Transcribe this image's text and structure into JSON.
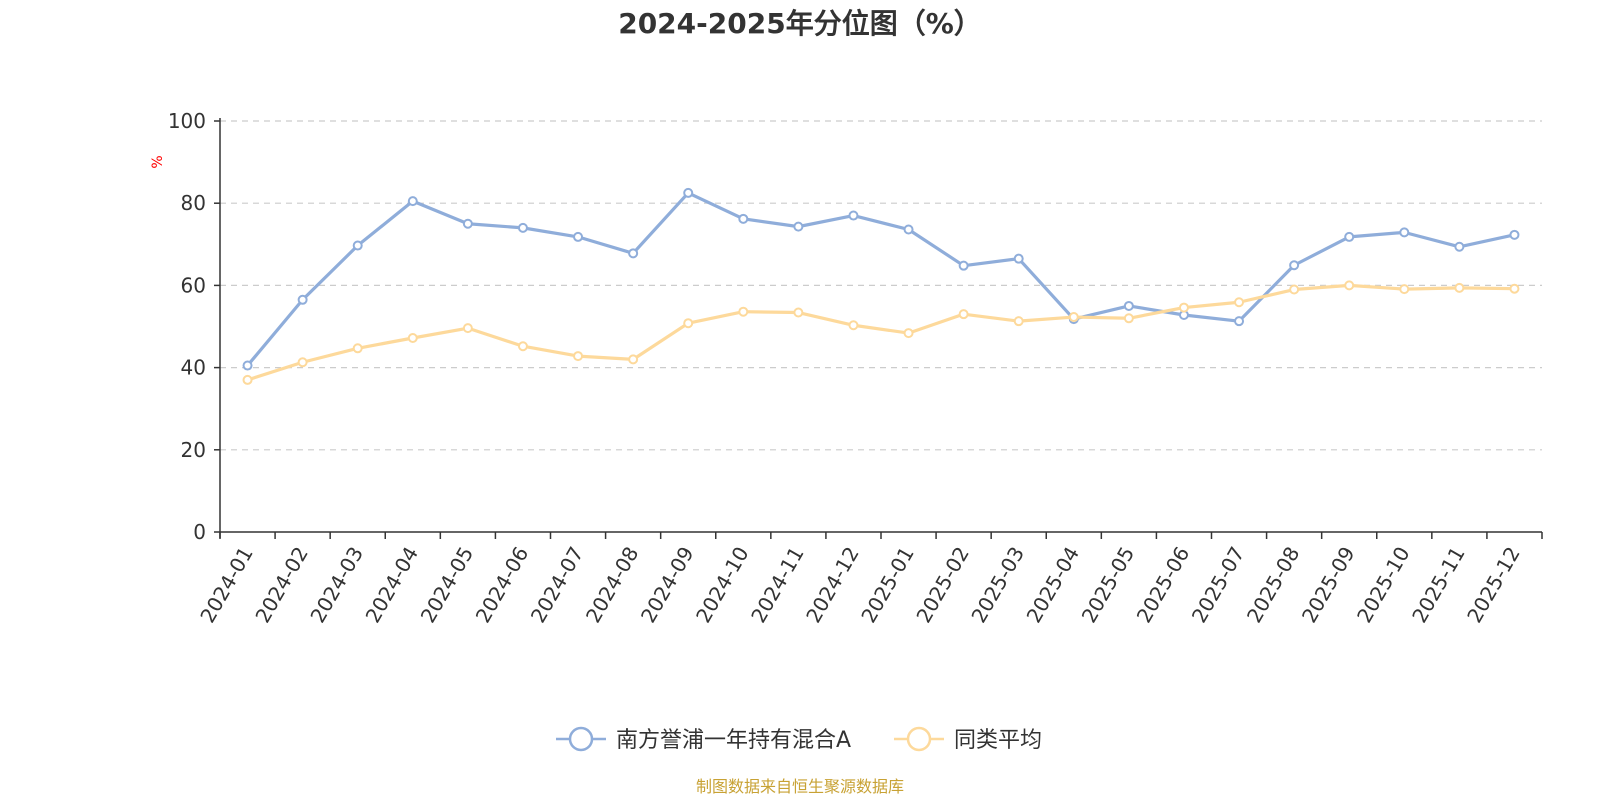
{
  "chart_data": {
    "type": "line",
    "title": "2024-2025年分位图（%）",
    "ylabel": "%",
    "xlabel": "",
    "ylim": [
      0,
      100
    ],
    "yticks": [
      0,
      20,
      40,
      60,
      80,
      100
    ],
    "grid": true,
    "legend_position": "bottom-center",
    "categories": [
      "2024-01",
      "2024-02",
      "2024-03",
      "2024-04",
      "2024-05",
      "2024-06",
      "2024-07",
      "2024-08",
      "2024-09",
      "2024-10",
      "2024-11",
      "2024-12",
      "2025-01",
      "2025-02",
      "2025-03",
      "2025-04",
      "2025-05",
      "2025-06",
      "2025-07",
      "2025-08",
      "2025-09",
      "2025-10",
      "2025-11",
      "2025-12"
    ],
    "series": [
      {
        "name": "南方誉浦一年持有混合A",
        "color": "#8fadda",
        "values": [
          40.5,
          56.5,
          69.7,
          80.5,
          75.0,
          74.0,
          71.8,
          67.8,
          82.5,
          76.2,
          74.3,
          77.0,
          73.6,
          64.8,
          66.5,
          51.8,
          55.0,
          52.8,
          51.3,
          64.9,
          71.8,
          72.9,
          69.4,
          72.3
        ]
      },
      {
        "name": "同类平均",
        "color": "#fdd99b",
        "values": [
          37.0,
          41.3,
          44.7,
          47.2,
          49.6,
          45.2,
          42.8,
          42.0,
          50.8,
          53.6,
          53.4,
          50.3,
          48.4,
          53.0,
          51.3,
          52.3,
          52.0,
          54.6,
          55.9,
          59.0,
          60.0,
          59.1,
          59.4,
          59.2
        ]
      }
    ]
  },
  "colors": {
    "unit_label": "#ff0000",
    "source_text": "#c8a234",
    "axis": "#333333",
    "grid": "#cccccc"
  },
  "source": "制图数据来自恒生聚源数据库"
}
